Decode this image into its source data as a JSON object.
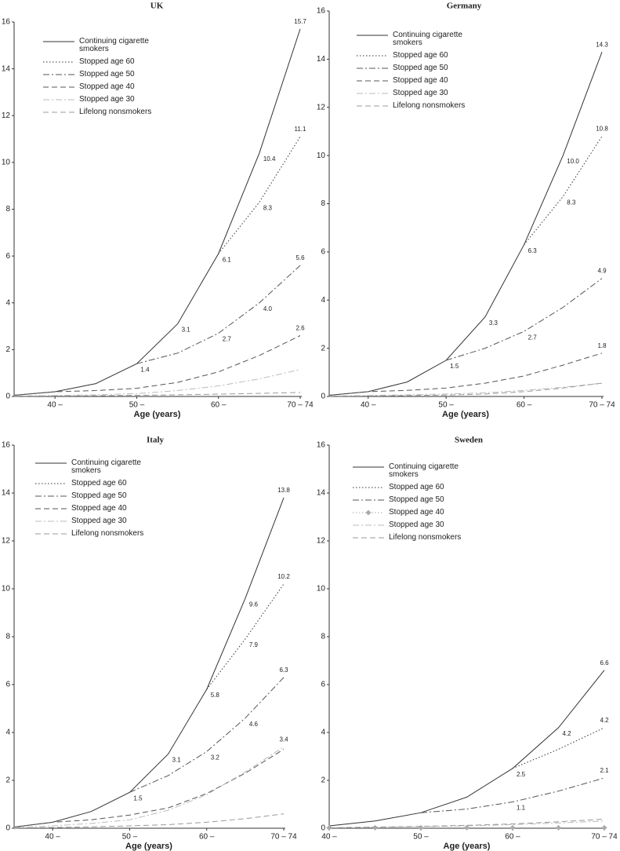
{
  "chart_data": [
    {
      "type": "line",
      "title": "UK",
      "x_label": "Age (years)",
      "x": [
        35,
        40,
        45,
        50,
        55,
        60,
        65,
        70
      ],
      "xlim": [
        35,
        70
      ],
      "xticks": [
        {
          "value": 40,
          "label": "40 –"
        },
        {
          "value": 50,
          "label": "50 –"
        },
        {
          "value": 60,
          "label": "60 –"
        },
        {
          "value": 70,
          "label": "70 – 74"
        }
      ],
      "ylim": [
        0,
        16
      ],
      "yticks": [
        0,
        2,
        4,
        6,
        8,
        10,
        12,
        14,
        16
      ],
      "legend": "upper left",
      "series": [
        {
          "name": "Continuing cigarette smokers",
          "color": "#333333",
          "dash": "solid",
          "values": [
            0.05,
            0.2,
            0.55,
            1.4,
            3.1,
            6.1,
            10.4,
            15.7
          ],
          "value_labels": [
            null,
            null,
            null,
            "1.4",
            "3.1",
            "6.1",
            "10.4",
            "15.7"
          ]
        },
        {
          "name": "Stopped age 60",
          "color": "#333333",
          "dash": "dotted",
          "values": [
            null,
            null,
            null,
            null,
            null,
            6.1,
            8.3,
            11.1
          ],
          "value_labels": [
            null,
            null,
            null,
            null,
            null,
            null,
            "8.3",
            "11.1"
          ]
        },
        {
          "name": "Stopped age 50",
          "color": "#555555",
          "dash": "dashdot",
          "values": [
            null,
            null,
            null,
            1.4,
            1.85,
            2.7,
            4.0,
            5.6
          ],
          "value_labels": [
            null,
            null,
            null,
            null,
            null,
            "2.7",
            "4.0",
            "5.6"
          ]
        },
        {
          "name": "Stopped age 40",
          "color": "#555555",
          "dash": "dashed",
          "values": [
            0.05,
            0.2,
            0.25,
            0.35,
            0.6,
            1.05,
            1.75,
            2.6
          ],
          "value_labels": [
            null,
            null,
            null,
            null,
            null,
            null,
            null,
            "2.6"
          ]
        },
        {
          "name": "Stopped age 30",
          "color": "#bbbbbb",
          "dash": "dashdot",
          "values": [
            0.02,
            0.04,
            0.07,
            0.12,
            0.25,
            0.45,
            0.75,
            1.15
          ]
        },
        {
          "name": "Lifelong nonsmokers",
          "color": "#999999",
          "dash": "dashed",
          "values": [
            0.01,
            0.02,
            0.03,
            0.05,
            0.07,
            0.1,
            0.13,
            0.17
          ]
        }
      ]
    },
    {
      "type": "line",
      "title": "Germany",
      "x_label": "Age (years)",
      "x": [
        35,
        40,
        45,
        50,
        55,
        60,
        65,
        70
      ],
      "xlim": [
        35,
        70
      ],
      "xticks": [
        {
          "value": 40,
          "label": "40 –"
        },
        {
          "value": 50,
          "label": "50 –"
        },
        {
          "value": 60,
          "label": "60 –"
        },
        {
          "value": 70,
          "label": "70 – 74"
        }
      ],
      "ylim": [
        0,
        16
      ],
      "yticks": [
        0,
        2,
        4,
        6,
        8,
        10,
        12,
        14,
        16
      ],
      "legend": "upper left",
      "series": [
        {
          "name": "Continuing cigarette smokers",
          "color": "#333333",
          "dash": "solid",
          "values": [
            0.05,
            0.2,
            0.6,
            1.5,
            3.3,
            6.3,
            10.0,
            14.3
          ],
          "value_labels": [
            null,
            null,
            null,
            "1.5",
            "3.3",
            "6.3",
            "10.0",
            "14.3"
          ]
        },
        {
          "name": "Stopped age 60",
          "color": "#333333",
          "dash": "dotted",
          "values": [
            null,
            null,
            null,
            null,
            null,
            6.3,
            8.3,
            10.8
          ],
          "value_labels": [
            null,
            null,
            null,
            null,
            null,
            null,
            "8.3",
            "10.8"
          ]
        },
        {
          "name": "Stopped age 50",
          "color": "#555555",
          "dash": "dashdot",
          "values": [
            null,
            null,
            null,
            1.5,
            2.0,
            2.7,
            3.7,
            4.9
          ],
          "value_labels": [
            null,
            null,
            null,
            null,
            null,
            "2.7",
            null,
            "4.9"
          ]
        },
        {
          "name": "Stopped age 40",
          "color": "#555555",
          "dash": "dashed",
          "values": [
            0.05,
            0.2,
            0.25,
            0.35,
            0.55,
            0.85,
            1.3,
            1.8
          ],
          "value_labels": [
            null,
            null,
            null,
            null,
            null,
            null,
            null,
            "1.8"
          ]
        },
        {
          "name": "Stopped age 30",
          "color": "#bbbbbb",
          "dash": "dashdot",
          "values": [
            0.02,
            0.04,
            0.07,
            0.1,
            0.15,
            0.25,
            0.38,
            0.55
          ]
        },
        {
          "name": "Lifelong nonsmokers",
          "color": "#999999",
          "dash": "dashed",
          "values": [
            0.01,
            0.02,
            0.04,
            0.06,
            0.1,
            0.2,
            0.35,
            0.55
          ]
        }
      ]
    },
    {
      "type": "line",
      "title": "Italy",
      "x_label": "Age (years)",
      "x": [
        35,
        40,
        45,
        50,
        55,
        60,
        65,
        70
      ],
      "xlim": [
        35,
        70
      ],
      "xticks": [
        {
          "value": 40,
          "label": "40 –"
        },
        {
          "value": 50,
          "label": "50 –"
        },
        {
          "value": 60,
          "label": "60 –"
        },
        {
          "value": 70,
          "label": "70 – 74"
        }
      ],
      "ylim": [
        0,
        16
      ],
      "yticks": [
        0,
        2,
        4,
        6,
        8,
        10,
        12,
        14,
        16
      ],
      "legend": "upper left",
      "series": [
        {
          "name": "Continuing cigarette smokers",
          "color": "#333333",
          "dash": "solid",
          "values": [
            0.05,
            0.25,
            0.7,
            1.5,
            3.1,
            5.8,
            9.6,
            13.8
          ],
          "value_labels": [
            null,
            null,
            null,
            "1.5",
            "3.1",
            "5.8",
            "9.6",
            "13.8"
          ]
        },
        {
          "name": "Stopped age 60",
          "color": "#333333",
          "dash": "dotted",
          "values": [
            null,
            null,
            null,
            null,
            null,
            5.8,
            7.9,
            10.2
          ],
          "value_labels": [
            null,
            null,
            null,
            null,
            null,
            null,
            "7.9",
            "10.2"
          ]
        },
        {
          "name": "Stopped age 50",
          "color": "#555555",
          "dash": "dashdot",
          "values": [
            null,
            null,
            null,
            1.5,
            2.2,
            3.2,
            4.6,
            6.3
          ],
          "value_labels": [
            null,
            null,
            null,
            null,
            null,
            "3.2",
            "4.6",
            "6.3"
          ]
        },
        {
          "name": "Stopped age 40",
          "color": "#555555",
          "dash": "dashed",
          "values": [
            0.05,
            0.25,
            0.35,
            0.55,
            0.85,
            1.45,
            2.3,
            3.3
          ]
        },
        {
          "name": "Stopped age 30",
          "color": "#bbbbbb",
          "dash": "dashdot",
          "values": [
            0.03,
            0.1,
            0.2,
            0.35,
            0.75,
            1.4,
            2.35,
            3.4
          ],
          "value_labels": [
            null,
            null,
            null,
            null,
            null,
            null,
            null,
            "3.4"
          ]
        },
        {
          "name": "Lifelong nonsmokers",
          "color": "#999999",
          "dash": "dashed",
          "values": [
            0.01,
            0.03,
            0.06,
            0.1,
            0.15,
            0.25,
            0.4,
            0.6
          ]
        }
      ]
    },
    {
      "type": "line",
      "title": "Sweden",
      "x_label": "Age (years)",
      "x": [
        40,
        45,
        50,
        55,
        60,
        65,
        70
      ],
      "xlim": [
        40,
        70
      ],
      "xticks": [
        {
          "value": 40,
          "label": "40 –"
        },
        {
          "value": 50,
          "label": "50 –"
        },
        {
          "value": 60,
          "label": "60 –"
        },
        {
          "value": 70,
          "label": "70 – 74"
        }
      ],
      "ylim": [
        0,
        16
      ],
      "yticks": [
        0,
        2,
        4,
        6,
        8,
        10,
        12,
        14,
        16
      ],
      "legend": "upper left",
      "series": [
        {
          "name": "Continuing cigarette smokers",
          "color": "#333333",
          "dash": "solid",
          "values": [
            0.1,
            0.3,
            0.65,
            1.3,
            2.5,
            4.2,
            6.6
          ],
          "value_labels": [
            null,
            null,
            null,
            null,
            "2.5",
            "4.2",
            "6.6"
          ]
        },
        {
          "name": "Stopped age 60",
          "color": "#333333",
          "dash": "dotted",
          "values": [
            null,
            null,
            null,
            null,
            2.5,
            3.3,
            4.2
          ],
          "value_labels": [
            null,
            null,
            null,
            null,
            null,
            null,
            "4.2"
          ]
        },
        {
          "name": "Stopped age 50",
          "color": "#555555",
          "dash": "dashdot",
          "values": [
            null,
            null,
            0.65,
            0.8,
            1.1,
            1.55,
            2.1
          ],
          "value_labels": [
            null,
            null,
            null,
            null,
            "1.1",
            null,
            "2.1"
          ]
        },
        {
          "name": "Stopped age 40",
          "color": "#aaaaaa",
          "dash": "dotted",
          "marker": "diamond",
          "values": [
            0.02,
            0.02,
            0.02,
            0.02,
            0.02,
            0.02,
            0.02
          ]
        },
        {
          "name": "Stopped age 30",
          "color": "#bbbbbb",
          "dash": "dashdot",
          "values": [
            0.02,
            0.04,
            0.07,
            0.1,
            0.15,
            0.22,
            0.3
          ]
        },
        {
          "name": "Lifelong nonsmokers",
          "color": "#999999",
          "dash": "dashed",
          "values": [
            0.02,
            0.05,
            0.08,
            0.12,
            0.18,
            0.27,
            0.38
          ]
        }
      ]
    }
  ]
}
